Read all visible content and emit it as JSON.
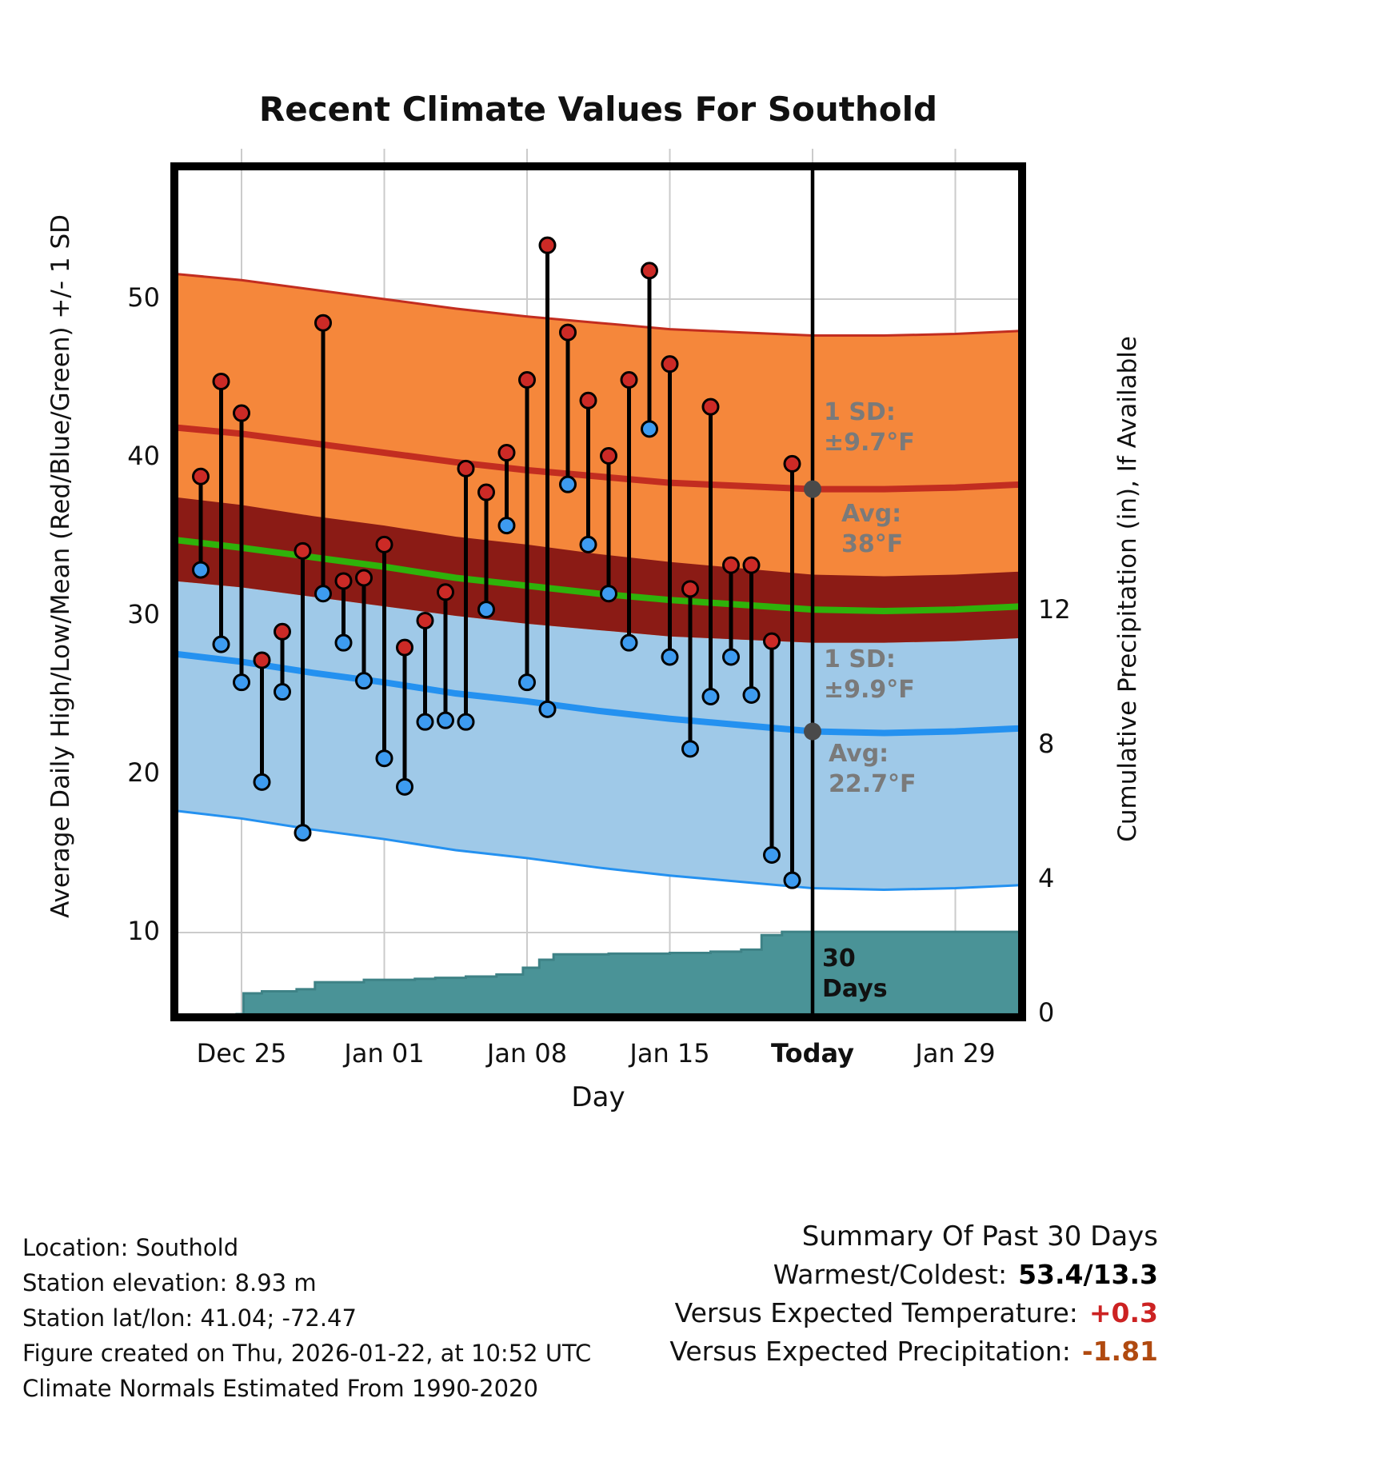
{
  "title": "Recent Climate Values For Southold",
  "axes": {
    "left_label": "Average Daily High/Low/Mean (Red/Blue/Green) +/- 1 SD",
    "right_label": "Cumulative Precipitation (in), If Available",
    "x_label": "Day"
  },
  "chart_data": {
    "type": "line",
    "description": "Daily high/low temperature ranges (red/blue dots with black stems) over climate normal bands (high avg +/-1SD orange, low avg +/-1SD light blue, overlap dark red, mean green), plus cumulative precipitation step area (teal) on right axis; vertical black line marks Today",
    "x_axis": {
      "unit": "day",
      "reference": "days since Dec 25",
      "tick_days": [
        0,
        7,
        14,
        21,
        28,
        35
      ],
      "tick_labels": [
        "Dec 25",
        "Jan 01",
        "Jan 08",
        "Jan 15",
        "Today",
        "Jan 29"
      ],
      "tick_bold": [
        false,
        false,
        false,
        false,
        true,
        false
      ],
      "range_days": [
        -3.3,
        38.3
      ],
      "today_day": 28
    },
    "temp_axis": {
      "ticks": [
        10,
        20,
        30,
        40,
        50
      ],
      "range_f": [
        4.6,
        58.4
      ]
    },
    "precip_axis": {
      "ticks": [
        0,
        4,
        8,
        12
      ],
      "range_in": [
        0,
        25.2
      ]
    },
    "daily": {
      "dates": [
        "Dec 23",
        "Dec 24",
        "Dec 25",
        "Dec 26",
        "Dec 27",
        "Dec 28",
        "Dec 29",
        "Dec 30",
        "Dec 31",
        "Jan 01",
        "Jan 02",
        "Jan 03",
        "Jan 04",
        "Jan 05",
        "Jan 06",
        "Jan 07",
        "Jan 08",
        "Jan 09",
        "Jan 10",
        "Jan 11",
        "Jan 12",
        "Jan 13",
        "Jan 14",
        "Jan 15",
        "Jan 16",
        "Jan 17",
        "Jan 18",
        "Jan 19",
        "Jan 20",
        "Jan 21"
      ],
      "day": [
        -2,
        -1,
        0,
        1,
        2,
        3,
        4,
        5,
        6,
        7,
        8,
        9,
        10,
        11,
        12,
        13,
        14,
        15,
        16,
        17,
        18,
        19,
        20,
        21,
        22,
        23,
        24,
        25,
        26,
        27
      ],
      "high_f": [
        38.8,
        44.8,
        42.8,
        27.2,
        29.0,
        34.1,
        48.5,
        32.2,
        32.4,
        34.5,
        28.0,
        29.7,
        31.5,
        39.3,
        37.8,
        40.3,
        44.9,
        53.4,
        47.9,
        43.6,
        40.1,
        44.9,
        51.8,
        45.9,
        31.7,
        43.2,
        33.2,
        33.2,
        28.4,
        39.6
      ],
      "low_f": [
        32.9,
        28.2,
        25.8,
        19.5,
        25.2,
        16.3,
        31.4,
        28.3,
        25.9,
        21.0,
        19.2,
        23.3,
        23.4,
        23.3,
        30.4,
        35.7,
        25.8,
        24.1,
        38.3,
        34.5,
        31.4,
        28.3,
        41.8,
        27.4,
        21.6,
        24.9,
        27.4,
        25.0,
        14.9,
        13.3
      ]
    },
    "normals": {
      "day": [
        -3.3,
        0,
        3.5,
        7,
        10.5,
        14,
        17.5,
        21,
        24.5,
        28,
        31.5,
        35,
        38.3
      ],
      "high_avg_f": [
        41.9,
        41.5,
        40.9,
        40.3,
        39.7,
        39.2,
        38.8,
        38.4,
        38.2,
        38.0,
        38.0,
        38.1,
        38.3
      ],
      "low_avg_f": [
        27.6,
        27.1,
        26.4,
        25.8,
        25.1,
        24.6,
        24.0,
        23.5,
        23.1,
        22.7,
        22.6,
        22.7,
        22.9
      ],
      "mean_avg_f": [
        34.8,
        34.3,
        33.7,
        33.1,
        32.4,
        31.9,
        31.4,
        31.0,
        30.7,
        30.4,
        30.3,
        30.4,
        30.6
      ],
      "high_sd_f": 9.7,
      "low_sd_f": 9.9
    },
    "cumulative_precip_in": {
      "day": [
        -0.3,
        0.1,
        1.0,
        2.7,
        3.6,
        6.0,
        8.5,
        9.5,
        11.0,
        12.5,
        13.8,
        14.6,
        15.3,
        18.0,
        21.0,
        23.0,
        24.5,
        25.5,
        26.5,
        38.3
      ],
      "inches": [
        0.0,
        0.62,
        0.68,
        0.74,
        0.95,
        1.02,
        1.05,
        1.08,
        1.12,
        1.18,
        1.38,
        1.62,
        1.78,
        1.8,
        1.82,
        1.86,
        1.92,
        2.35,
        2.45,
        2.45
      ]
    }
  },
  "annotations": {
    "high_sd_lines": [
      "1 SD:",
      "±9.7°F"
    ],
    "high_avg_lines": [
      "Avg:",
      "38°F"
    ],
    "low_sd_lines": [
      "1 SD:",
      "±9.9°F"
    ],
    "low_avg_lines": [
      "Avg:",
      "22.7°F"
    ],
    "window_lines": [
      "30",
      "Days"
    ],
    "high_avg_value": 38,
    "low_avg_value": 22.7
  },
  "footer": {
    "lines": [
      "Location: Southold",
      "Station elevation: 8.93 m",
      "Station lat/lon: 41.04; -72.47",
      "Figure created on Thu, 2026-01-22, at 10:52 UTC",
      "Climate Normals Estimated From 1990-2020"
    ]
  },
  "summary": {
    "title": "Summary Of Past 30 Days",
    "rows": [
      {
        "label": "Warmest/Coldest:",
        "value": "53.4/13.3",
        "color": "#000000"
      },
      {
        "label": "Versus Expected Temperature:",
        "value": "+0.3",
        "color": "#CC2222"
      },
      {
        "label": "Versus Expected Precipitation:",
        "value": "-1.81",
        "color": "#B04A10"
      }
    ]
  },
  "colors": {
    "high_band": "#F5873B",
    "high_line": "#C22D20",
    "high_dot": "#CC2A26",
    "overlap_band": "#8B1B15",
    "low_band": "#9FC9E8",
    "low_line": "#2491F0",
    "low_dot": "#3D9BF0",
    "mean_line": "#2FB20A",
    "precip_fill": "#4A9397",
    "precip_edge": "#3E8286",
    "grid": "#CBCBCB",
    "frame": "#000000",
    "gray_annotation": "#7A7A7A",
    "today_marker": "#4A4A4A"
  }
}
